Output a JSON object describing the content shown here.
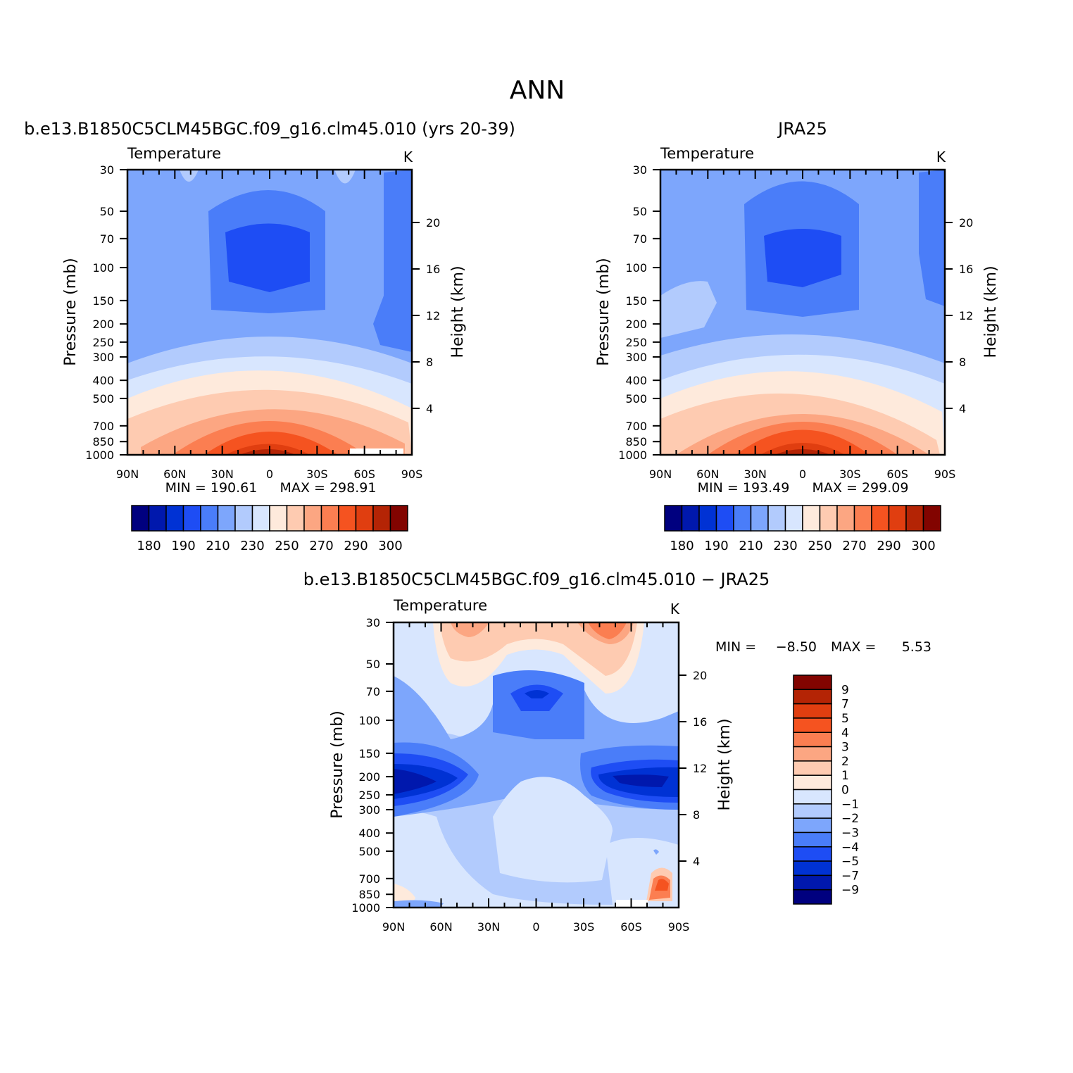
{
  "page_title": "ANN",
  "chart_data": [
    {
      "type": "heatmap",
      "title": "b.e13.B1850C5CLM45BGC.f09_g16.clm45.010 (yrs 20-39)",
      "variable": "Temperature",
      "units": "K",
      "xlabel": "",
      "ylabel": "Pressure (mb)",
      "y2label": "Height (km)",
      "x_ticks": [
        "90N",
        "60N",
        "30N",
        "0",
        "30S",
        "60S",
        "90S"
      ],
      "y_ticks": [
        "30",
        "50",
        "70",
        "100",
        "150",
        "200",
        "250",
        "300",
        "400",
        "500",
        "700",
        "850",
        "1000"
      ],
      "y2_ticks": [
        "20",
        "16",
        "12",
        "8",
        "4"
      ],
      "min_label": "MIN = 190.61",
      "max_label": "MAX = 298.91",
      "min": 190.61,
      "max": 298.91,
      "colorbar_labels": [
        "180",
        "190",
        "210",
        "230",
        "250",
        "270",
        "290",
        "300"
      ],
      "colors": [
        "#00007f",
        "#0018ad",
        "#0032d4",
        "#1e4df4",
        "#4a7df9",
        "#7da6fc",
        "#b2cbfd",
        "#d8e6fe",
        "#feeadc",
        "#fecbb1",
        "#fca682",
        "#fb7e51",
        "#f55320",
        "#e03e10",
        "#b42405",
        "#820400"
      ]
    },
    {
      "type": "heatmap",
      "title": "JRA25",
      "variable": "Temperature",
      "units": "K",
      "xlabel": "",
      "ylabel": "Pressure (mb)",
      "y2label": "Height (km)",
      "x_ticks": [
        "90N",
        "60N",
        "30N",
        "0",
        "30S",
        "60S",
        "90S"
      ],
      "y_ticks": [
        "30",
        "50",
        "70",
        "100",
        "150",
        "200",
        "250",
        "300",
        "400",
        "500",
        "700",
        "850",
        "1000"
      ],
      "y2_ticks": [
        "20",
        "16",
        "12",
        "8",
        "4"
      ],
      "min_label": "MIN = 193.49",
      "max_label": "MAX = 299.09",
      "min": 193.49,
      "max": 299.09,
      "colorbar_labels": [
        "180",
        "190",
        "210",
        "230",
        "250",
        "270",
        "290",
        "300"
      ],
      "colors": [
        "#00007f",
        "#0018ad",
        "#0032d4",
        "#1e4df4",
        "#4a7df9",
        "#7da6fc",
        "#b2cbfd",
        "#d8e6fe",
        "#feeadc",
        "#fecbb1",
        "#fca682",
        "#fb7e51",
        "#f55320",
        "#e03e10",
        "#b42405",
        "#820400"
      ]
    },
    {
      "type": "heatmap",
      "title": "b.e13.B1850C5CLM45BGC.f09_g16.clm45.010 − JRA25",
      "variable": "Temperature",
      "units": "K",
      "xlabel": "",
      "ylabel": "Pressure (mb)",
      "y2label": "Height (km)",
      "x_ticks": [
        "90N",
        "60N",
        "30N",
        "0",
        "30S",
        "60S",
        "90S"
      ],
      "y_ticks": [
        "30",
        "50",
        "70",
        "100",
        "150",
        "200",
        "250",
        "300",
        "400",
        "500",
        "700",
        "850",
        "1000"
      ],
      "y2_ticks": [
        "20",
        "16",
        "12",
        "8",
        "4"
      ],
      "min_label": "MIN =",
      "min_value": "−8.50",
      "max_label": "MAX =",
      "max_value": "5.53",
      "min": -8.5,
      "max": 5.53,
      "colorbar_labels": [
        "9",
        "7",
        "5",
        "4",
        "3",
        "2",
        "1",
        "0",
        "−1",
        "−2",
        "−3",
        "−4",
        "−5",
        "−7",
        "−9"
      ],
      "colors": [
        "#820400",
        "#b42405",
        "#e03e10",
        "#f55320",
        "#fb7e51",
        "#fca682",
        "#fecbb1",
        "#feeadc",
        "#d8e6fe",
        "#b2cbfd",
        "#7da6fc",
        "#4a7df9",
        "#1e4df4",
        "#0032d4",
        "#0018ad",
        "#00007f"
      ]
    }
  ]
}
